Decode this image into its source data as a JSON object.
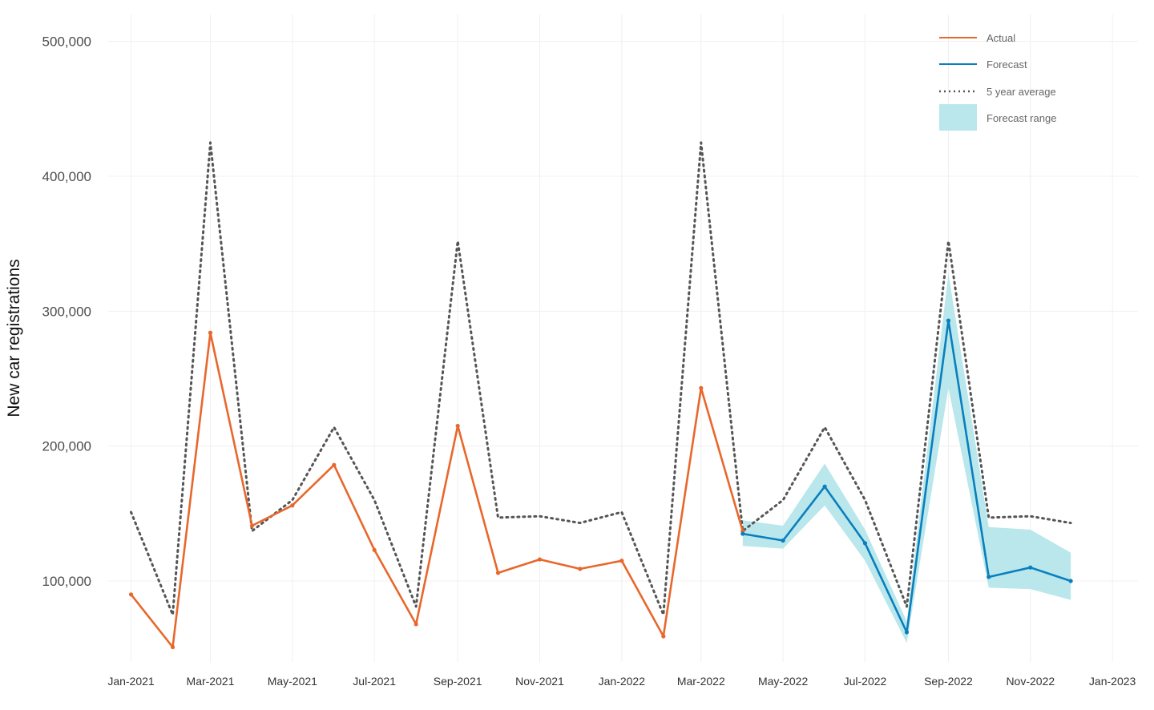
{
  "chart_data": {
    "type": "line",
    "ylabel": "New car registrations",
    "xlabel": "",
    "ylim": [
      40000,
      520000
    ],
    "xlim": [
      "2020-12-15",
      "2023-01-20"
    ],
    "grid": true,
    "legend_position": "top-right",
    "y_ticks": [
      {
        "value": 100000,
        "label": "100,000"
      },
      {
        "value": 200000,
        "label": "200,000"
      },
      {
        "value": 300000,
        "label": "300,000"
      },
      {
        "value": 400000,
        "label": "400,000"
      },
      {
        "value": 500000,
        "label": "500,000"
      }
    ],
    "x_ticks": [
      {
        "date": "2021-01-01",
        "label": "Jan-2021"
      },
      {
        "date": "2021-03-01",
        "label": "Mar-2021"
      },
      {
        "date": "2021-05-01",
        "label": "May-2021"
      },
      {
        "date": "2021-07-01",
        "label": "Jul-2021"
      },
      {
        "date": "2021-09-01",
        "label": "Sep-2021"
      },
      {
        "date": "2021-11-01",
        "label": "Nov-2021"
      },
      {
        "date": "2022-01-01",
        "label": "Jan-2022"
      },
      {
        "date": "2022-03-01",
        "label": "Mar-2022"
      },
      {
        "date": "2022-05-01",
        "label": "May-2022"
      },
      {
        "date": "2022-07-01",
        "label": "Jul-2022"
      },
      {
        "date": "2022-09-01",
        "label": "Sep-2022"
      },
      {
        "date": "2022-11-01",
        "label": "Nov-2022"
      },
      {
        "date": "2023-01-01",
        "label": "Jan-2023"
      }
    ],
    "legend": [
      {
        "key": "actual",
        "label": "Actual"
      },
      {
        "key": "forecast",
        "label": "Forecast"
      },
      {
        "key": "avg",
        "label": "5 year average"
      },
      {
        "key": "range",
        "label": "Forecast range"
      }
    ],
    "colors": {
      "actual": "#e8672c",
      "forecast": "#0a7fbd",
      "avg": "#555555",
      "range": "#b9e7ec"
    },
    "series": [
      {
        "key": "actual",
        "name": "Actual",
        "points": [
          {
            "x": "2021-01-01",
            "y": 90000
          },
          {
            "x": "2021-02-01",
            "y": 51000
          },
          {
            "x": "2021-03-01",
            "y": 284000
          },
          {
            "x": "2021-04-01",
            "y": 141000
          },
          {
            "x": "2021-05-01",
            "y": 156000
          },
          {
            "x": "2021-06-01",
            "y": 186000
          },
          {
            "x": "2021-07-01",
            "y": 123000
          },
          {
            "x": "2021-08-01",
            "y": 68000
          },
          {
            "x": "2021-09-01",
            "y": 215000
          },
          {
            "x": "2021-10-01",
            "y": 106000
          },
          {
            "x": "2021-11-01",
            "y": 116000
          },
          {
            "x": "2021-12-01",
            "y": 109000
          },
          {
            "x": "2022-01-01",
            "y": 115000
          },
          {
            "x": "2022-02-01",
            "y": 59000
          },
          {
            "x": "2022-03-01",
            "y": 243000
          },
          {
            "x": "2022-04-01",
            "y": 137000
          }
        ]
      },
      {
        "key": "forecast",
        "name": "Forecast",
        "points": [
          {
            "x": "2022-04-01",
            "y": 135000
          },
          {
            "x": "2022-05-01",
            "y": 130000
          },
          {
            "x": "2022-06-01",
            "y": 170000
          },
          {
            "x": "2022-07-01",
            "y": 128000
          },
          {
            "x": "2022-08-01",
            "y": 62000
          },
          {
            "x": "2022-09-01",
            "y": 293000
          },
          {
            "x": "2022-10-01",
            "y": 103000
          },
          {
            "x": "2022-11-01",
            "y": 110000
          },
          {
            "x": "2022-12-01",
            "y": 100000
          }
        ]
      },
      {
        "key": "avg",
        "name": "5 year average",
        "points": [
          {
            "x": "2021-01-01",
            "y": 151000
          },
          {
            "x": "2021-02-01",
            "y": 75000
          },
          {
            "x": "2021-03-01",
            "y": 425000
          },
          {
            "x": "2021-04-01",
            "y": 137000
          },
          {
            "x": "2021-05-01",
            "y": 160000
          },
          {
            "x": "2021-06-01",
            "y": 214000
          },
          {
            "x": "2021-07-01",
            "y": 160000
          },
          {
            "x": "2021-08-01",
            "y": 81000
          },
          {
            "x": "2021-09-01",
            "y": 352000
          },
          {
            "x": "2021-10-01",
            "y": 147000
          },
          {
            "x": "2021-11-01",
            "y": 148000
          },
          {
            "x": "2021-12-01",
            "y": 143000
          },
          {
            "x": "2022-01-01",
            "y": 151000
          },
          {
            "x": "2022-02-01",
            "y": 75000
          },
          {
            "x": "2022-03-01",
            "y": 425000
          },
          {
            "x": "2022-04-01",
            "y": 137000
          },
          {
            "x": "2022-05-01",
            "y": 160000
          },
          {
            "x": "2022-06-01",
            "y": 214000
          },
          {
            "x": "2022-07-01",
            "y": 160000
          },
          {
            "x": "2022-08-01",
            "y": 81000
          },
          {
            "x": "2022-09-01",
            "y": 352000
          },
          {
            "x": "2022-10-01",
            "y": 147000
          },
          {
            "x": "2022-11-01",
            "y": 148000
          },
          {
            "x": "2022-12-01",
            "y": 143000
          }
        ]
      }
    ],
    "forecast_range": [
      {
        "x": "2022-04-01",
        "low": 126000,
        "high": 145000
      },
      {
        "x": "2022-05-01",
        "low": 124000,
        "high": 141000
      },
      {
        "x": "2022-06-01",
        "low": 156000,
        "high": 187000
      },
      {
        "x": "2022-07-01",
        "low": 115000,
        "high": 138000
      },
      {
        "x": "2022-08-01",
        "low": 54000,
        "high": 70000
      },
      {
        "x": "2022-09-01",
        "low": 243000,
        "high": 328000
      },
      {
        "x": "2022-10-01",
        "low": 95000,
        "high": 140000
      },
      {
        "x": "2022-11-01",
        "low": 94000,
        "high": 138000
      },
      {
        "x": "2022-12-01",
        "low": 86000,
        "high": 121000
      }
    ]
  }
}
